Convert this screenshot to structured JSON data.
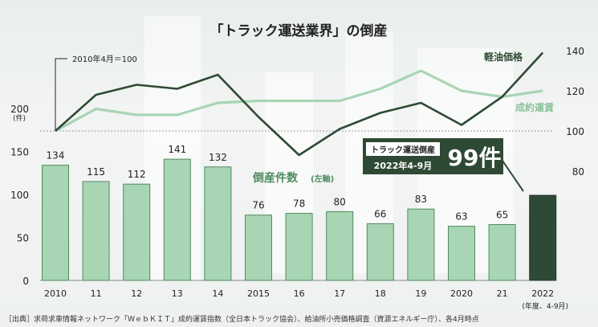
{
  "chart_data": {
    "type": "bar",
    "title": "「トラック運送業界」の倒産",
    "categories": [
      "2010",
      "11",
      "12",
      "13",
      "14",
      "2015",
      "16",
      "17",
      "18",
      "19",
      "2020",
      "21",
      "2022"
    ],
    "x_sublabel": "(年度、4-9月)",
    "series": [
      {
        "name": "倒産件数",
        "name_note": "(左軸)",
        "axis": "left",
        "values": [
          134,
          115,
          112,
          141,
          132,
          76,
          78,
          80,
          66,
          83,
          63,
          65,
          99
        ],
        "color": "#a8d5b4",
        "highlight_color": "#2f4a34"
      },
      {
        "name": "軽油価格",
        "axis": "right",
        "type": "line",
        "values": [
          100,
          118,
          123,
          121,
          128,
          107,
          88,
          101,
          109,
          114,
          103,
          117,
          139
        ],
        "color": "#2f4a34"
      },
      {
        "name": "成約運賃",
        "axis": "right",
        "type": "line",
        "values": [
          100,
          111,
          108,
          108,
          114,
          115,
          115,
          115,
          121,
          130,
          120,
          117,
          120
        ],
        "color": "#a8d5b4"
      }
    ],
    "left_axis": {
      "ticks": [
        "0",
        "50",
        "100",
        "150",
        "200"
      ],
      "unit": "(件)",
      "ylim": [
        0,
        200
      ]
    },
    "right_axis": {
      "ticks": [
        "80",
        "100",
        "120",
        "140"
      ],
      "ylim": [
        60,
        145
      ]
    },
    "baseline_note": "2010年4月＝100",
    "callout": {
      "title": "トラック運送倒産",
      "period": "2022年4-9月",
      "value": "99件"
    },
    "source": "［出典］求荷求車情報ネットワーク「ＷｅｂＫＩＴ」成約運賃指数（全日本トラック協会）、給油所小売価格調査（資源エネルギー庁）、各4月時点"
  }
}
